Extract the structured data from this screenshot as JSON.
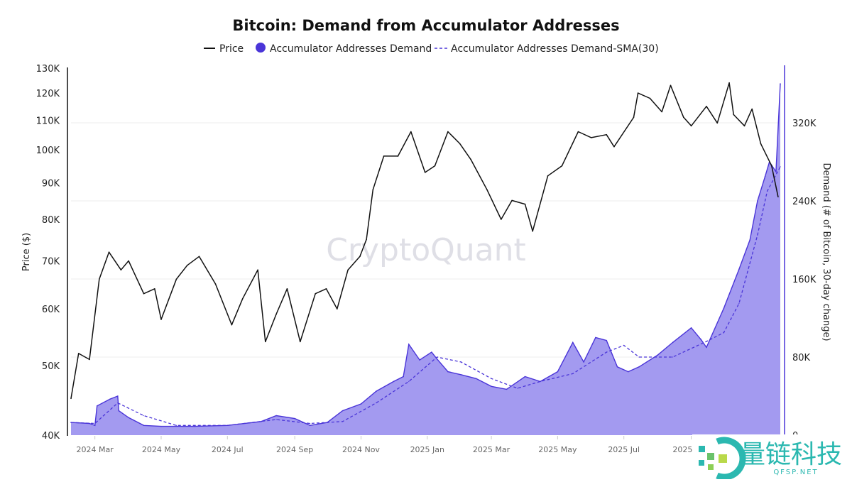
{
  "chart_data": {
    "type": "line",
    "title": "Bitcoin: Demand from Accumulator Addresses",
    "legend": {
      "placement": "top-center",
      "items": [
        "Price",
        "Accumulator Addresses Demand",
        "Accumulator Addresses Demand-SMA(30)"
      ]
    },
    "ylabel_left": "Price ($)",
    "ylabel_right": "Demand (# of Bitcoin, 30-day change)",
    "left_axis": {
      "scale": "log",
      "range": [
        40000,
        130000
      ],
      "ticks": [
        "40K",
        "50K",
        "60K",
        "70K",
        "80K",
        "90K",
        "100K",
        "110K",
        "120K",
        "130K"
      ],
      "tick_values": [
        40000,
        50000,
        60000,
        70000,
        80000,
        90000,
        100000,
        110000,
        120000,
        130000
      ]
    },
    "right_axis": {
      "scale": "linear",
      "range": [
        0,
        376000
      ],
      "ticks": [
        "0",
        "80K",
        "160K",
        "240K",
        "320K"
      ],
      "tick_values": [
        0,
        80000,
        160000,
        240000,
        320000
      ]
    },
    "x_ticks": [
      {
        "label": "2024 Mar",
        "date": "2024-03-01"
      },
      {
        "label": "2024 May",
        "date": "2024-05-01"
      },
      {
        "label": "2024 Jul",
        "date": "2024-07-01"
      },
      {
        "label": "2024 Sep",
        "date": "2024-09-01"
      },
      {
        "label": "2024 Nov",
        "date": "2024-11-01"
      },
      {
        "label": "2025 Jan",
        "date": "2025-01-01"
      },
      {
        "label": "2025 Mar",
        "date": "2025-03-01"
      },
      {
        "label": "2025 May",
        "date": "2025-05-01"
      },
      {
        "label": "2025 Jul",
        "date": "2025-07-01"
      },
      {
        "label": "2025 Sep",
        "date": "2025-09-01"
      }
    ],
    "x_range": [
      "2024-02-08",
      "2025-11-22"
    ],
    "grid": "horizontal",
    "colors": {
      "price": "#111111",
      "demand_line": "#4a35d8",
      "demand_fill": "#a39af0",
      "sma": "#4a35d8"
    },
    "series": [
      {
        "name": "Price",
        "unit": "USD",
        "points": [
          [
            "2024-02-08",
            45000
          ],
          [
            "2024-02-15",
            52000
          ],
          [
            "2024-02-25",
            51000
          ],
          [
            "2024-03-05",
            66000
          ],
          [
            "2024-03-14",
            72000
          ],
          [
            "2024-03-25",
            68000
          ],
          [
            "2024-04-01",
            70000
          ],
          [
            "2024-04-15",
            63000
          ],
          [
            "2024-04-25",
            64000
          ],
          [
            "2024-05-01",
            58000
          ],
          [
            "2024-05-15",
            66000
          ],
          [
            "2024-05-25",
            69000
          ],
          [
            "2024-06-05",
            71000
          ],
          [
            "2024-06-20",
            65000
          ],
          [
            "2024-07-05",
            57000
          ],
          [
            "2024-07-15",
            62000
          ],
          [
            "2024-07-29",
            68000
          ],
          [
            "2024-08-05",
            54000
          ],
          [
            "2024-08-15",
            59000
          ],
          [
            "2024-08-25",
            64000
          ],
          [
            "2024-09-06",
            54000
          ],
          [
            "2024-09-20",
            63000
          ],
          [
            "2024-09-30",
            64000
          ],
          [
            "2024-10-10",
            60000
          ],
          [
            "2024-10-20",
            68000
          ],
          [
            "2024-10-31",
            71000
          ],
          [
            "2024-11-06",
            75000
          ],
          [
            "2024-11-12",
            88000
          ],
          [
            "2024-11-22",
            98000
          ],
          [
            "2024-12-05",
            98000
          ],
          [
            "2024-12-17",
            106000
          ],
          [
            "2024-12-30",
            93000
          ],
          [
            "2025-01-08",
            95000
          ],
          [
            "2025-01-20",
            106000
          ],
          [
            "2025-01-31",
            102000
          ],
          [
            "2025-02-10",
            97000
          ],
          [
            "2025-02-25",
            88000
          ],
          [
            "2025-03-10",
            80000
          ],
          [
            "2025-03-20",
            85000
          ],
          [
            "2025-04-01",
            84000
          ],
          [
            "2025-04-08",
            77000
          ],
          [
            "2025-04-22",
            92000
          ],
          [
            "2025-05-05",
            95000
          ],
          [
            "2025-05-20",
            106000
          ],
          [
            "2025-06-01",
            104000
          ],
          [
            "2025-06-15",
            105000
          ],
          [
            "2025-06-22",
            101000
          ],
          [
            "2025-07-10",
            111000
          ],
          [
            "2025-07-14",
            120000
          ],
          [
            "2025-07-25",
            118000
          ],
          [
            "2025-08-05",
            113000
          ],
          [
            "2025-08-13",
            123000
          ],
          [
            "2025-08-25",
            111000
          ],
          [
            "2025-09-01",
            108000
          ],
          [
            "2025-09-15",
            115000
          ],
          [
            "2025-09-25",
            109000
          ],
          [
            "2025-10-06",
            124000
          ],
          [
            "2025-10-10",
            112000
          ],
          [
            "2025-10-20",
            108000
          ],
          [
            "2025-10-27",
            114000
          ],
          [
            "2025-11-04",
            102000
          ],
          [
            "2025-11-14",
            95000
          ],
          [
            "2025-11-20",
            86000
          ]
        ]
      },
      {
        "name": "Accumulator Addresses Demand",
        "unit": "BTC",
        "points": [
          [
            "2024-02-08",
            13000
          ],
          [
            "2024-02-25",
            12000
          ],
          [
            "2024-03-01",
            10000
          ],
          [
            "2024-03-03",
            30000
          ],
          [
            "2024-03-15",
            37000
          ],
          [
            "2024-03-22",
            40000
          ],
          [
            "2024-03-23",
            25000
          ],
          [
            "2024-04-01",
            18000
          ],
          [
            "2024-04-15",
            10000
          ],
          [
            "2024-05-01",
            9000
          ],
          [
            "2024-06-01",
            9000
          ],
          [
            "2024-07-01",
            10000
          ],
          [
            "2024-08-01",
            14000
          ],
          [
            "2024-08-15",
            20000
          ],
          [
            "2024-09-01",
            17000
          ],
          [
            "2024-09-15",
            10000
          ],
          [
            "2024-10-01",
            13000
          ],
          [
            "2024-10-15",
            25000
          ],
          [
            "2024-11-01",
            32000
          ],
          [
            "2024-11-15",
            45000
          ],
          [
            "2024-12-01",
            55000
          ],
          [
            "2024-12-10",
            60000
          ],
          [
            "2024-12-15",
            93000
          ],
          [
            "2024-12-25",
            77000
          ],
          [
            "2025-01-05",
            85000
          ],
          [
            "2025-01-10",
            78000
          ],
          [
            "2025-01-20",
            65000
          ],
          [
            "2025-02-01",
            62000
          ],
          [
            "2025-02-15",
            58000
          ],
          [
            "2025-03-01",
            50000
          ],
          [
            "2025-03-15",
            47000
          ],
          [
            "2025-04-01",
            60000
          ],
          [
            "2025-04-15",
            55000
          ],
          [
            "2025-05-01",
            65000
          ],
          [
            "2025-05-15",
            95000
          ],
          [
            "2025-05-25",
            75000
          ],
          [
            "2025-06-05",
            100000
          ],
          [
            "2025-06-15",
            97000
          ],
          [
            "2025-06-25",
            70000
          ],
          [
            "2025-07-05",
            65000
          ],
          [
            "2025-07-15",
            70000
          ],
          [
            "2025-08-01",
            82000
          ],
          [
            "2025-08-15",
            95000
          ],
          [
            "2025-09-01",
            110000
          ],
          [
            "2025-09-10",
            98000
          ],
          [
            "2025-09-15",
            90000
          ],
          [
            "2025-10-01",
            130000
          ],
          [
            "2025-10-15",
            170000
          ],
          [
            "2025-10-25",
            200000
          ],
          [
            "2025-11-01",
            240000
          ],
          [
            "2025-11-08",
            265000
          ],
          [
            "2025-11-12",
            280000
          ],
          [
            "2025-11-18",
            270000
          ],
          [
            "2025-11-22",
            360000
          ]
        ]
      },
      {
        "name": "Accumulator Addresses Demand-SMA(30)",
        "unit": "BTC",
        "points": [
          [
            "2024-02-08",
            13000
          ],
          [
            "2024-03-01",
            12000
          ],
          [
            "2024-03-22",
            33000
          ],
          [
            "2024-04-15",
            20000
          ],
          [
            "2024-05-15",
            10000
          ],
          [
            "2024-07-01",
            10000
          ],
          [
            "2024-08-15",
            16000
          ],
          [
            "2024-09-15",
            12000
          ],
          [
            "2024-10-15",
            14000
          ],
          [
            "2024-11-15",
            33000
          ],
          [
            "2024-12-15",
            55000
          ],
          [
            "2025-01-10",
            80000
          ],
          [
            "2025-02-01",
            75000
          ],
          [
            "2025-03-01",
            58000
          ],
          [
            "2025-03-25",
            48000
          ],
          [
            "2025-04-15",
            55000
          ],
          [
            "2025-05-15",
            63000
          ],
          [
            "2025-06-15",
            85000
          ],
          [
            "2025-07-01",
            92000
          ],
          [
            "2025-07-15",
            80000
          ],
          [
            "2025-08-15",
            80000
          ],
          [
            "2025-09-15",
            96000
          ],
          [
            "2025-10-01",
            105000
          ],
          [
            "2025-10-15",
            135000
          ],
          [
            "2025-11-01",
            205000
          ],
          [
            "2025-11-10",
            250000
          ],
          [
            "2025-11-22",
            275000
          ]
        ]
      }
    ]
  },
  "watermark": "CryptoQuant",
  "logo": {
    "text": "量链科技",
    "subtext": "QFSP.NET"
  }
}
